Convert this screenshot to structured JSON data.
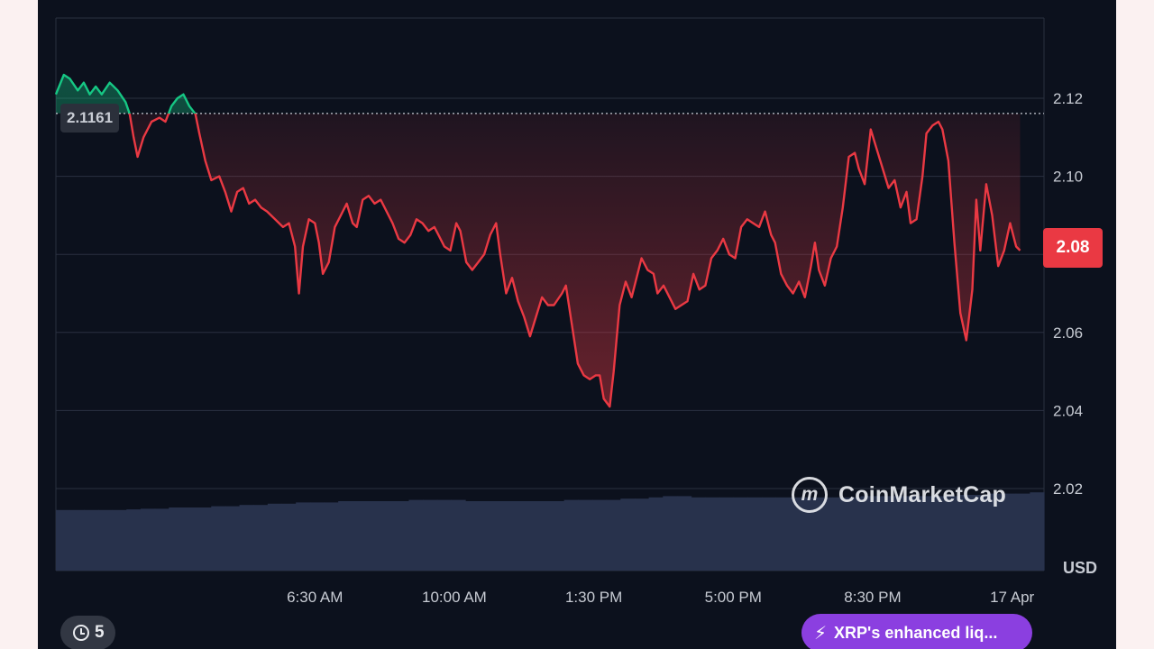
{
  "chart_data": {
    "type": "line",
    "currency": "USD",
    "y_ticks": [
      "2.12",
      "2.10",
      "2.08",
      "2.06",
      "2.04",
      "2.02"
    ],
    "y_tick_values": [
      2.12,
      2.1,
      2.08,
      2.06,
      2.04,
      2.02
    ],
    "ylim": [
      2.0,
      2.13
    ],
    "x_ticks": [
      "6:30 AM",
      "10:00 AM",
      "1:30 PM",
      "5:00 PM",
      "8:30 PM",
      "17 Apr"
    ],
    "x_tick_hours": [
      6.5,
      10.0,
      13.5,
      17.0,
      20.5,
      24.0
    ],
    "x_range_hours": [
      0.0,
      24.8
    ],
    "open_price": 2.1161,
    "open_price_label": "2.1161",
    "current_price": 2.08,
    "current_price_label": "2.08",
    "up_color": "#16c784",
    "down_color": "#ea3943",
    "grid": true,
    "series": [
      {
        "points": [
          [
            0.0,
            2.121
          ],
          [
            0.2,
            2.126
          ],
          [
            0.35,
            2.125
          ],
          [
            0.55,
            2.122
          ],
          [
            0.7,
            2.124
          ],
          [
            0.85,
            2.121
          ],
          [
            1.0,
            2.123
          ],
          [
            1.15,
            2.121
          ],
          [
            1.35,
            2.124
          ],
          [
            1.55,
            2.122
          ],
          [
            1.75,
            2.119
          ],
          [
            1.85,
            2.116
          ],
          [
            1.95,
            2.11
          ],
          [
            2.05,
            2.105
          ],
          [
            2.2,
            2.11
          ],
          [
            2.4,
            2.114
          ],
          [
            2.6,
            2.115
          ],
          [
            2.75,
            2.114
          ],
          [
            2.9,
            2.118
          ],
          [
            3.05,
            2.12
          ],
          [
            3.2,
            2.121
          ],
          [
            3.35,
            2.118
          ],
          [
            3.5,
            2.116
          ],
          [
            3.6,
            2.111
          ],
          [
            3.75,
            2.104
          ],
          [
            3.9,
            2.099
          ],
          [
            4.1,
            2.1
          ],
          [
            4.25,
            2.096
          ],
          [
            4.4,
            2.091
          ],
          [
            4.55,
            2.096
          ],
          [
            4.7,
            2.097
          ],
          [
            4.85,
            2.093
          ],
          [
            5.0,
            2.094
          ],
          [
            5.15,
            2.092
          ],
          [
            5.3,
            2.091
          ],
          [
            5.5,
            2.089
          ],
          [
            5.7,
            2.087
          ],
          [
            5.85,
            2.088
          ],
          [
            6.0,
            2.082
          ],
          [
            6.1,
            2.07
          ],
          [
            6.2,
            2.082
          ],
          [
            6.35,
            2.089
          ],
          [
            6.5,
            2.088
          ],
          [
            6.6,
            2.083
          ],
          [
            6.7,
            2.075
          ],
          [
            6.85,
            2.078
          ],
          [
            7.0,
            2.087
          ],
          [
            7.15,
            2.09
          ],
          [
            7.3,
            2.093
          ],
          [
            7.45,
            2.088
          ],
          [
            7.55,
            2.087
          ],
          [
            7.7,
            2.094
          ],
          [
            7.85,
            2.095
          ],
          [
            8.0,
            2.093
          ],
          [
            8.15,
            2.094
          ],
          [
            8.3,
            2.091
          ],
          [
            8.45,
            2.088
          ],
          [
            8.6,
            2.084
          ],
          [
            8.75,
            2.083
          ],
          [
            8.9,
            2.085
          ],
          [
            9.05,
            2.089
          ],
          [
            9.2,
            2.088
          ],
          [
            9.35,
            2.086
          ],
          [
            9.5,
            2.087
          ],
          [
            9.6,
            2.085
          ],
          [
            9.75,
            2.082
          ],
          [
            9.9,
            2.081
          ],
          [
            10.05,
            2.088
          ],
          [
            10.15,
            2.086
          ],
          [
            10.3,
            2.078
          ],
          [
            10.45,
            2.076
          ],
          [
            10.6,
            2.078
          ],
          [
            10.75,
            2.08
          ],
          [
            10.9,
            2.085
          ],
          [
            11.05,
            2.088
          ],
          [
            11.15,
            2.08
          ],
          [
            11.3,
            2.07
          ],
          [
            11.45,
            2.074
          ],
          [
            11.6,
            2.068
          ],
          [
            11.75,
            2.064
          ],
          [
            11.9,
            2.059
          ],
          [
            12.05,
            2.064
          ],
          [
            12.2,
            2.069
          ],
          [
            12.35,
            2.067
          ],
          [
            12.5,
            2.067
          ],
          [
            12.7,
            2.07
          ],
          [
            12.8,
            2.072
          ],
          [
            12.95,
            2.062
          ],
          [
            13.1,
            2.052
          ],
          [
            13.25,
            2.049
          ],
          [
            13.4,
            2.048
          ],
          [
            13.55,
            2.049
          ],
          [
            13.65,
            2.049
          ],
          [
            13.75,
            2.043
          ],
          [
            13.9,
            2.041
          ],
          [
            14.0,
            2.05
          ],
          [
            14.15,
            2.067
          ],
          [
            14.3,
            2.073
          ],
          [
            14.45,
            2.069
          ],
          [
            14.55,
            2.073
          ],
          [
            14.7,
            2.079
          ],
          [
            14.85,
            2.076
          ],
          [
            15.0,
            2.075
          ],
          [
            15.1,
            2.07
          ],
          [
            15.25,
            2.072
          ],
          [
            15.4,
            2.069
          ],
          [
            15.55,
            2.066
          ],
          [
            15.7,
            2.067
          ],
          [
            15.85,
            2.068
          ],
          [
            16.0,
            2.075
          ],
          [
            16.15,
            2.071
          ],
          [
            16.3,
            2.072
          ],
          [
            16.45,
            2.079
          ],
          [
            16.6,
            2.081
          ],
          [
            16.75,
            2.084
          ],
          [
            16.9,
            2.08
          ],
          [
            17.05,
            2.079
          ],
          [
            17.2,
            2.087
          ],
          [
            17.35,
            2.089
          ],
          [
            17.5,
            2.088
          ],
          [
            17.65,
            2.087
          ],
          [
            17.8,
            2.091
          ],
          [
            17.95,
            2.085
          ],
          [
            18.05,
            2.083
          ],
          [
            18.2,
            2.075
          ],
          [
            18.35,
            2.072
          ],
          [
            18.5,
            2.07
          ],
          [
            18.65,
            2.073
          ],
          [
            18.8,
            2.069
          ],
          [
            18.95,
            2.077
          ],
          [
            19.05,
            2.083
          ],
          [
            19.15,
            2.076
          ],
          [
            19.3,
            2.072
          ],
          [
            19.45,
            2.079
          ],
          [
            19.6,
            2.082
          ],
          [
            19.75,
            2.092
          ],
          [
            19.9,
            2.105
          ],
          [
            20.05,
            2.106
          ],
          [
            20.15,
            2.102
          ],
          [
            20.3,
            2.098
          ],
          [
            20.45,
            2.112
          ],
          [
            20.6,
            2.107
          ],
          [
            20.75,
            2.102
          ],
          [
            20.9,
            2.097
          ],
          [
            21.05,
            2.099
          ],
          [
            21.2,
            2.092
          ],
          [
            21.35,
            2.096
          ],
          [
            21.45,
            2.088
          ],
          [
            21.6,
            2.089
          ],
          [
            21.75,
            2.1
          ],
          [
            21.85,
            2.111
          ],
          [
            22.0,
            2.113
          ],
          [
            22.15,
            2.114
          ],
          [
            22.25,
            2.112
          ],
          [
            22.4,
            2.104
          ],
          [
            22.55,
            2.083
          ],
          [
            22.7,
            2.065
          ],
          [
            22.85,
            2.058
          ],
          [
            23.0,
            2.071
          ],
          [
            23.1,
            2.094
          ],
          [
            23.2,
            2.081
          ],
          [
            23.35,
            2.098
          ],
          [
            23.5,
            2.09
          ],
          [
            23.65,
            2.077
          ],
          [
            23.8,
            2.081
          ],
          [
            23.95,
            2.088
          ],
          [
            24.1,
            2.082
          ],
          [
            24.2,
            2.081
          ]
        ]
      }
    ],
    "volume": [
      0.48,
      0.48,
      0.48,
      0.48,
      0.48,
      0.485,
      0.49,
      0.49,
      0.5,
      0.5,
      0.5,
      0.51,
      0.51,
      0.52,
      0.52,
      0.53,
      0.53,
      0.54,
      0.54,
      0.54,
      0.55,
      0.55,
      0.55,
      0.55,
      0.55,
      0.56,
      0.56,
      0.56,
      0.56,
      0.55,
      0.55,
      0.55,
      0.55,
      0.55,
      0.55,
      0.55,
      0.56,
      0.56,
      0.56,
      0.56,
      0.57,
      0.57,
      0.58,
      0.59,
      0.59,
      0.58,
      0.58,
      0.58,
      0.58,
      0.58,
      0.58,
      0.58,
      0.58,
      0.58,
      0.58,
      0.58,
      0.58,
      0.59,
      0.59,
      0.59,
      0.59,
      0.59,
      0.59,
      0.59,
      0.6,
      0.6,
      0.61,
      0.61,
      0.61,
      0.62
    ]
  },
  "watermark": {
    "brand": "CoinMarketCap",
    "logo_letter": "m"
  },
  "history": {
    "count": "5"
  },
  "news": {
    "text": "XRP's enhanced liq..."
  }
}
